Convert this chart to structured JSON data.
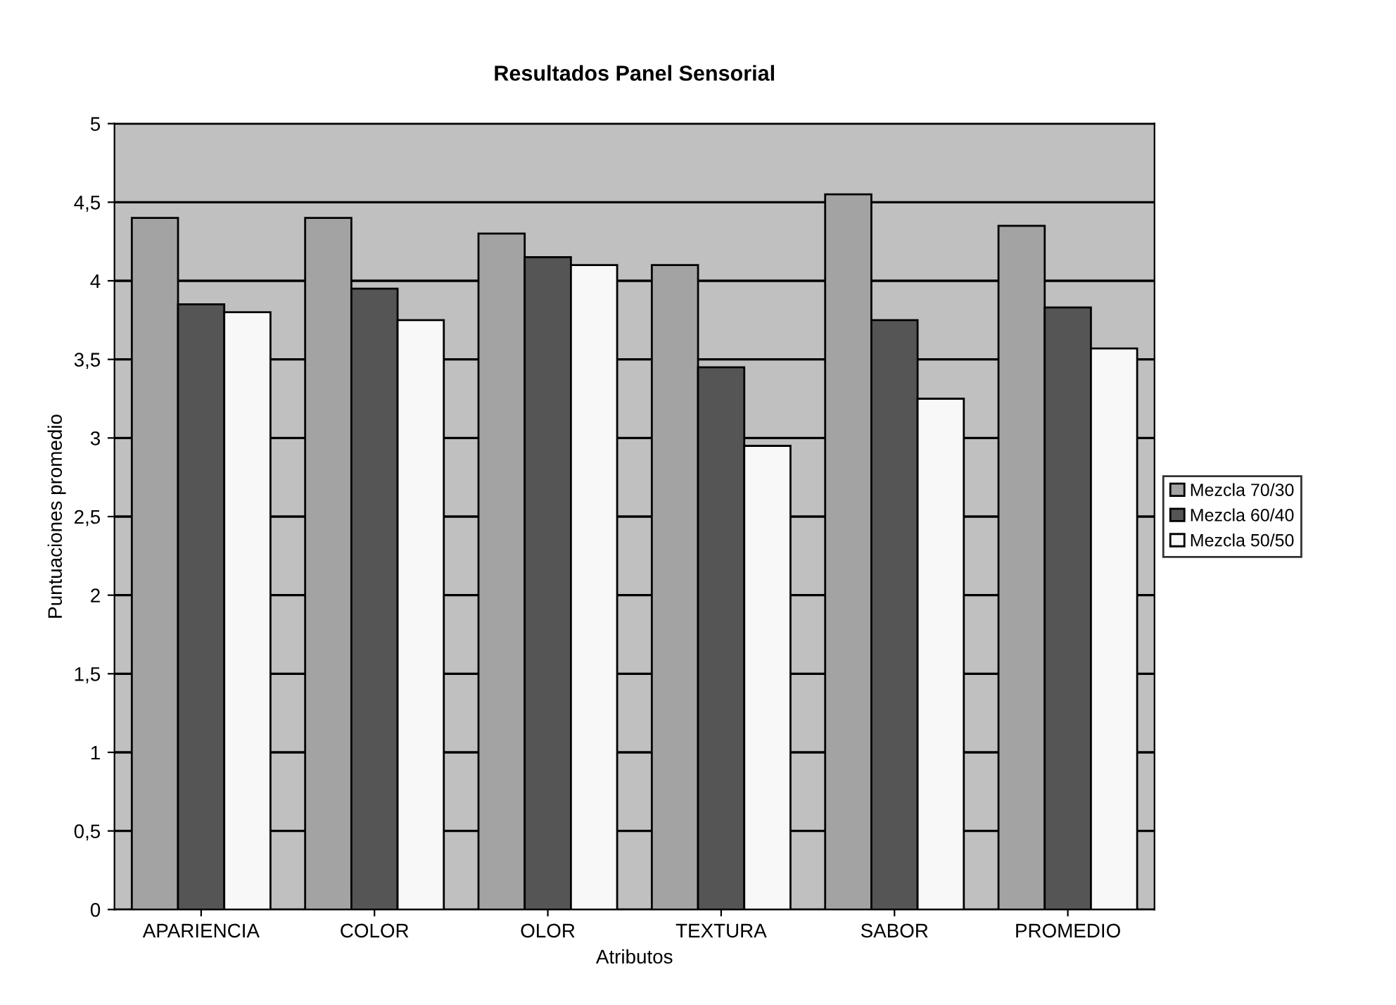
{
  "chart_data": {
    "type": "bar",
    "title": "Resultados Panel Sensorial",
    "xlabel": "Atributos",
    "ylabel": "Puntuaciones promedio",
    "categories": [
      "APARIENCIA",
      "COLOR",
      "OLOR",
      "TEXTURA",
      "SABOR",
      "PROMEDIO"
    ],
    "series": [
      {
        "name": "Mezcla 70/30",
        "color": "#a3a3a3",
        "values": [
          4.4,
          4.4,
          4.3,
          4.1,
          4.55,
          4.35
        ]
      },
      {
        "name": "Mezcla 60/40",
        "color": "#555555",
        "values": [
          3.85,
          3.95,
          4.15,
          3.45,
          3.75,
          3.83
        ]
      },
      {
        "name": "Mezcla 50/50",
        "color": "#f8f8f8",
        "values": [
          3.8,
          3.75,
          4.1,
          2.95,
          3.25,
          3.57
        ]
      }
    ],
    "ylim": [
      0,
      5
    ],
    "yticks": [
      0,
      {
        "value": 0.5,
        "label": "0,5"
      },
      1,
      {
        "value": 1.5,
        "label": "1,5"
      },
      2,
      {
        "value": 2.5,
        "label": "2,5"
      },
      3,
      {
        "value": 3.5,
        "label": "3,5"
      },
      4,
      {
        "value": 4.5,
        "label": "4,5"
      },
      5
    ],
    "grid": "y",
    "legend": "right"
  }
}
